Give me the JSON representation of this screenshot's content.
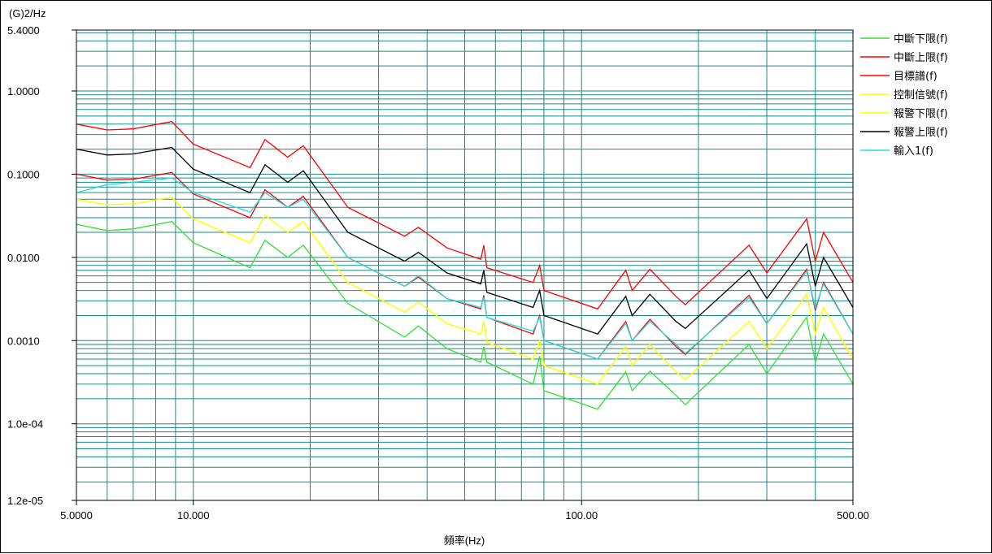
{
  "chart_data": {
    "type": "line",
    "ylabel": "(G)2/Hz",
    "xlabel": "頻率(Hz)",
    "xscale": "log",
    "yscale": "log",
    "xlim": [
      5,
      500
    ],
    "ylim": [
      1.2e-05,
      5.4
    ],
    "grid": true,
    "legend_position": "right",
    "x_ticks": [
      {
        "value": 5,
        "label": "5.0000"
      },
      {
        "value": 10,
        "label": "10.000"
      },
      {
        "value": 100,
        "label": "100.00"
      },
      {
        "value": 500,
        "label": "500.00"
      }
    ],
    "y_ticks": [
      {
        "value": 5.4,
        "label": "5.4000"
      },
      {
        "value": 1,
        "label": "1.0000"
      },
      {
        "value": 0.1,
        "label": "0.1000"
      },
      {
        "value": 0.01,
        "label": "0.0100"
      },
      {
        "value": 0.001,
        "label": "0.0010"
      },
      {
        "value": 0.0001,
        "label": "1.0e-04"
      },
      {
        "value": 1.2e-05,
        "label": "1.2e-05"
      }
    ],
    "series": [
      {
        "name": "中斷下限(f)",
        "color": "#33dd33",
        "x": [
          5,
          6,
          7,
          8.8,
          10,
          14,
          15.3,
          17.5,
          19.2,
          25,
          35,
          38,
          45,
          55,
          56,
          57,
          75,
          78,
          80,
          110,
          130,
          135,
          150,
          175,
          185,
          270,
          300,
          380,
          400,
          420,
          500
        ],
        "y": [
          0.025,
          0.021,
          0.022,
          0.027,
          0.015,
          0.0075,
          0.016,
          0.01,
          0.014,
          0.0028,
          0.0011,
          0.0015,
          0.0008,
          0.00055,
          0.00085,
          0.00055,
          0.0003,
          0.00065,
          0.00025,
          0.00015,
          0.00042,
          0.00025,
          0.00043,
          0.00022,
          0.00017,
          0.0009,
          0.0004,
          0.0019,
          0.00055,
          0.0012,
          0.0003
        ]
      },
      {
        "name": "中斷上限(f)",
        "color": "#ff0000",
        "x": [
          5,
          6,
          7,
          8.8,
          10,
          14,
          15.3,
          17.5,
          19.2,
          25,
          35,
          38,
          45,
          55,
          56,
          57,
          75,
          78,
          80,
          110,
          130,
          135,
          150,
          175,
          185,
          270,
          300,
          380,
          400,
          420,
          500
        ],
        "y": [
          0.4,
          0.34,
          0.35,
          0.43,
          0.23,
          0.12,
          0.26,
          0.16,
          0.22,
          0.04,
          0.018,
          0.023,
          0.013,
          0.0095,
          0.014,
          0.0075,
          0.005,
          0.008,
          0.004,
          0.0024,
          0.007,
          0.004,
          0.0072,
          0.0034,
          0.0027,
          0.014,
          0.0065,
          0.029,
          0.009,
          0.02,
          0.005
        ]
      },
      {
        "name": "目標譜(f)",
        "color": "#ff0000",
        "x": [
          5,
          6,
          7,
          8.8,
          10,
          14,
          15.3,
          17.5,
          19.2,
          25,
          35,
          38,
          45,
          55,
          56,
          57,
          75,
          78,
          80,
          110,
          130,
          135,
          150,
          175,
          185,
          270,
          300,
          380,
          400,
          420,
          500
        ],
        "y": [
          0.1,
          0.085,
          0.087,
          0.105,
          0.058,
          0.03,
          0.065,
          0.04,
          0.054,
          0.01,
          0.0045,
          0.0058,
          0.0032,
          0.0024,
          0.0035,
          0.0019,
          0.0012,
          0.002,
          0.001,
          0.0006,
          0.0017,
          0.001,
          0.0018,
          0.00085,
          0.00068,
          0.0035,
          0.0016,
          0.0072,
          0.0023,
          0.005,
          0.0012
        ]
      },
      {
        "name": "控制信號(f)",
        "color": "#ffff00",
        "x": [
          5,
          6,
          7,
          8.8,
          10,
          14,
          15.3,
          17.5,
          19.2,
          25,
          35,
          38,
          45,
          55,
          56,
          57,
          75,
          78,
          80,
          110,
          130,
          135,
          150,
          175,
          185,
          270,
          300,
          380,
          400,
          420,
          500
        ],
        "y": [
          0.05,
          0.043,
          0.044,
          0.053,
          0.029,
          0.015,
          0.032,
          0.02,
          0.027,
          0.005,
          0.0022,
          0.0029,
          0.0016,
          0.0012,
          0.0017,
          0.00095,
          0.0006,
          0.001,
          0.0005,
          0.0003,
          0.00085,
          0.0005,
          0.0009,
          0.00042,
          0.00034,
          0.0017,
          0.0008,
          0.0036,
          0.0012,
          0.0025,
          0.0006
        ]
      },
      {
        "name": "報警下限(f)",
        "color": "#ffff00",
        "x": [
          5,
          6,
          7,
          8.8,
          10,
          14,
          15.3,
          17.5,
          19.2,
          25,
          35,
          38,
          45,
          55,
          56,
          57,
          75,
          78,
          80,
          110,
          130,
          135,
          150,
          175,
          185,
          270,
          300,
          380,
          400,
          420,
          500
        ],
        "y": [
          0.05,
          0.043,
          0.044,
          0.053,
          0.029,
          0.015,
          0.032,
          0.02,
          0.027,
          0.005,
          0.0022,
          0.0029,
          0.0016,
          0.0012,
          0.0017,
          0.00095,
          0.0006,
          0.001,
          0.0005,
          0.0003,
          0.00085,
          0.0005,
          0.0009,
          0.00042,
          0.00034,
          0.0017,
          0.0008,
          0.0036,
          0.0012,
          0.0025,
          0.0006
        ]
      },
      {
        "name": "報警上限(f)",
        "color": "#000000",
        "x": [
          5,
          6,
          7,
          8.8,
          10,
          14,
          15.3,
          17.5,
          19.2,
          25,
          35,
          38,
          45,
          55,
          56,
          57,
          75,
          78,
          80,
          110,
          130,
          135,
          150,
          175,
          185,
          270,
          300,
          380,
          400,
          420,
          500
        ],
        "y": [
          0.2,
          0.17,
          0.175,
          0.21,
          0.115,
          0.06,
          0.13,
          0.08,
          0.11,
          0.02,
          0.009,
          0.0115,
          0.0065,
          0.0048,
          0.007,
          0.0038,
          0.0025,
          0.004,
          0.002,
          0.0012,
          0.0034,
          0.002,
          0.0036,
          0.0017,
          0.0014,
          0.007,
          0.0032,
          0.0145,
          0.0045,
          0.01,
          0.0025
        ]
      },
      {
        "name": "輸入1(f)",
        "color": "#22dddd",
        "x": [
          5,
          6,
          7,
          8.8,
          10,
          14,
          15.3,
          17.5,
          19.2,
          25,
          35,
          38,
          45,
          55,
          56,
          57,
          75,
          78,
          80,
          110,
          130,
          135,
          150,
          175,
          185,
          270,
          300,
          380,
          400,
          420,
          500
        ],
        "y": [
          0.06,
          0.075,
          0.08,
          0.09,
          0.06,
          0.035,
          0.06,
          0.04,
          0.05,
          0.01,
          0.0045,
          0.006,
          0.0032,
          0.0025,
          0.0033,
          0.0019,
          0.0013,
          0.0019,
          0.001,
          0.0006,
          0.0016,
          0.001,
          0.0017,
          0.0009,
          0.0007,
          0.0033,
          0.0016,
          0.0068,
          0.0025,
          0.0048,
          0.0012
        ]
      }
    ]
  }
}
